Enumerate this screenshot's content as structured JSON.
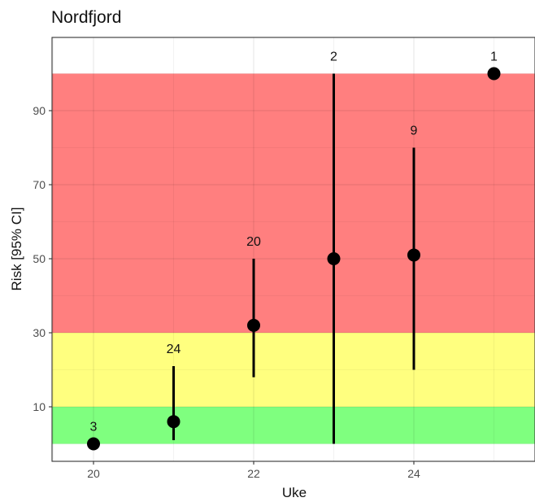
{
  "chart_data": {
    "type": "scatter",
    "title": "Nordfjord",
    "xlabel": "Uke",
    "ylabel": "Risk [95% CI]",
    "xlim": [
      19.5,
      25.45
    ],
    "ylim": [
      -4.5,
      104
    ],
    "x_ticks": [
      "20",
      "22",
      "24"
    ],
    "y_ticks": [
      "10",
      "30",
      "50",
      "70",
      "90"
    ],
    "grid": true,
    "bands": [
      {
        "name": "green",
        "from": 0,
        "to": 10,
        "color": "#7fff7f"
      },
      {
        "name": "yellow",
        "from": 10,
        "to": 30,
        "color": "#ffff7f"
      },
      {
        "name": "red",
        "from": 30,
        "to": 100,
        "color": "#ff7f7f"
      }
    ],
    "points": [
      {
        "x": 20,
        "y": 0,
        "lower": 0,
        "upper": 0,
        "n": "3"
      },
      {
        "x": 21,
        "y": 6,
        "lower": 1,
        "upper": 21,
        "n": "24"
      },
      {
        "x": 22,
        "y": 32,
        "lower": 18,
        "upper": 50,
        "n": "20"
      },
      {
        "x": 23,
        "y": 50,
        "lower": 0,
        "upper": 100,
        "n": "2"
      },
      {
        "x": 24,
        "y": 51,
        "lower": 20,
        "upper": 80,
        "n": "9"
      },
      {
        "x": 25,
        "y": 100,
        "lower": 100,
        "upper": 100,
        "n": "1"
      }
    ]
  }
}
